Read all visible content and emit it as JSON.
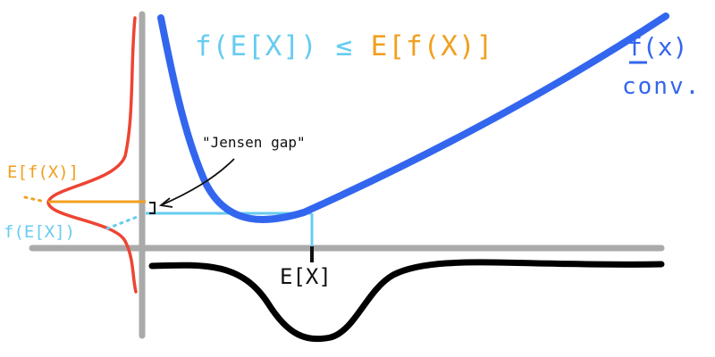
{
  "labels": {
    "inequality_left": "f(E[X])",
    "inequality_sign": " ≤ ",
    "inequality_right": "E[f(X)]",
    "function_name": "f(x)",
    "function_note": "conv.",
    "jensen_gap": "\"Jensen gap\"",
    "expected_f": "E[f(X)]",
    "f_of_expected": "f(E[X])",
    "expected_x": "E[X]"
  },
  "colors": {
    "axis": "#aaaaaa",
    "convex_curve": "#3366ee",
    "f_of_expected": "#66ccf0",
    "expected_f": "#f0a020",
    "output_distribution": "#ee4433",
    "input_distribution": "#000000",
    "annotation": "#111111"
  }
}
